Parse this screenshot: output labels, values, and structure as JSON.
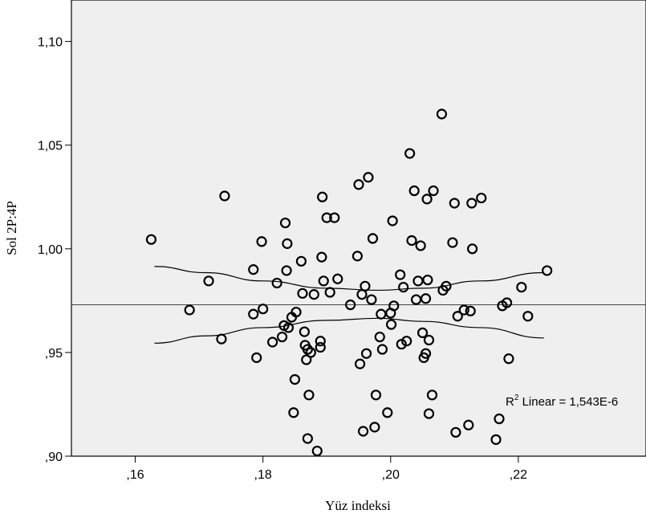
{
  "chart_data": {
    "type": "scatter",
    "xlabel": "Yüz indeksi",
    "ylabel": "Sol 2P:4P",
    "xlim": [
      0.15,
      0.24
    ],
    "ylim": [
      0.9,
      1.12
    ],
    "x_ticks": [
      0.16,
      0.18,
      0.2,
      0.22
    ],
    "x_tick_labels": [
      ",16",
      ",18",
      ",20",
      ",22"
    ],
    "y_ticks": [
      0.9,
      0.95,
      1.0,
      1.05,
      1.1
    ],
    "y_tick_labels": [
      ",90",
      ",95",
      "1,00",
      "1,05",
      "1,10"
    ],
    "grid": false,
    "background_color": "#efefef",
    "annotation": {
      "prefix": "R",
      "superscript": "2",
      "text": " Linear = 1,543E-6"
    },
    "fit_line": {
      "y": 0.973
    },
    "confidence_band": {
      "upper": [
        [
          0.163,
          0.9915
        ],
        [
          0.171,
          0.9885
        ],
        [
          0.18,
          0.9845
        ],
        [
          0.19,
          0.981
        ],
        [
          0.198,
          0.98
        ],
        [
          0.205,
          0.981
        ],
        [
          0.214,
          0.9845
        ],
        [
          0.224,
          0.9885
        ]
      ],
      "lower": [
        [
          0.163,
          0.9545
        ],
        [
          0.171,
          0.958
        ],
        [
          0.18,
          0.962
        ],
        [
          0.19,
          0.9655
        ],
        [
          0.198,
          0.9665
        ],
        [
          0.205,
          0.965
        ],
        [
          0.214,
          0.962
        ],
        [
          0.224,
          0.957
        ]
      ]
    },
    "points": [
      [
        0.1625,
        1.0045
      ],
      [
        0.1685,
        0.9705
      ],
      [
        0.1715,
        0.9845
      ],
      [
        0.1735,
        0.9565
      ],
      [
        0.174,
        1.0255
      ],
      [
        0.1785,
        0.99
      ],
      [
        0.1785,
        0.9685
      ],
      [
        0.179,
        0.9475
      ],
      [
        0.1798,
        1.0035
      ],
      [
        0.18,
        0.971
      ],
      [
        0.1815,
        0.955
      ],
      [
        0.1822,
        0.9835
      ],
      [
        0.183,
        0.9575
      ],
      [
        0.1833,
        0.963
      ],
      [
        0.1835,
        1.0125
      ],
      [
        0.1837,
        0.9895
      ],
      [
        0.1838,
        1.0025
      ],
      [
        0.184,
        0.962
      ],
      [
        0.1845,
        0.967
      ],
      [
        0.1848,
        0.921
      ],
      [
        0.185,
        0.937
      ],
      [
        0.1852,
        0.9695
      ],
      [
        0.186,
        0.994
      ],
      [
        0.1862,
        0.9785
      ],
      [
        0.1865,
        0.96
      ],
      [
        0.1866,
        0.9535
      ],
      [
        0.1868,
        0.9465
      ],
      [
        0.187,
        0.9515
      ],
      [
        0.187,
        0.9085
      ],
      [
        0.1872,
        0.9295
      ],
      [
        0.1875,
        0.95
      ],
      [
        0.188,
        0.978
      ],
      [
        0.1885,
        0.9025
      ],
      [
        0.189,
        0.9525
      ],
      [
        0.189,
        0.9555
      ],
      [
        0.1892,
        0.996
      ],
      [
        0.1893,
        1.025
      ],
      [
        0.1895,
        0.9845
      ],
      [
        0.19,
        1.015
      ],
      [
        0.1905,
        0.979
      ],
      [
        0.1912,
        1.015
      ],
      [
        0.1917,
        0.9855
      ],
      [
        0.1937,
        0.973
      ],
      [
        0.1948,
        0.9965
      ],
      [
        0.195,
        1.031
      ],
      [
        0.1952,
        0.9445
      ],
      [
        0.1955,
        0.978
      ],
      [
        0.1957,
        0.912
      ],
      [
        0.196,
        0.982
      ],
      [
        0.1962,
        0.9495
      ],
      [
        0.1965,
        1.0345
      ],
      [
        0.197,
        0.9755
      ],
      [
        0.1972,
        1.005
      ],
      [
        0.1975,
        0.914
      ],
      [
        0.1977,
        0.9295
      ],
      [
        0.1983,
        0.9575
      ],
      [
        0.1985,
        0.9685
      ],
      [
        0.1987,
        0.9515
      ],
      [
        0.1995,
        0.921
      ],
      [
        0.2,
        0.969
      ],
      [
        0.2001,
        0.9635
      ],
      [
        0.2003,
        1.0135
      ],
      [
        0.2005,
        0.9725
      ],
      [
        0.2015,
        0.9875
      ],
      [
        0.2017,
        0.954
      ],
      [
        0.202,
        0.9815
      ],
      [
        0.2025,
        0.9555
      ],
      [
        0.203,
        1.046
      ],
      [
        0.2033,
        1.004
      ],
      [
        0.2037,
        1.028
      ],
      [
        0.204,
        0.9755
      ],
      [
        0.2043,
        0.9845
      ],
      [
        0.2047,
        1.0015
      ],
      [
        0.205,
        0.9595
      ],
      [
        0.2052,
        0.9475
      ],
      [
        0.2055,
        0.9495
      ],
      [
        0.2055,
        0.976
      ],
      [
        0.2057,
        1.024
      ],
      [
        0.2058,
        0.985
      ],
      [
        0.206,
        0.956
      ],
      [
        0.206,
        0.9205
      ],
      [
        0.2065,
        0.9295
      ],
      [
        0.2067,
        1.028
      ],
      [
        0.208,
        1.065
      ],
      [
        0.2082,
        0.98
      ],
      [
        0.2087,
        0.982
      ],
      [
        0.2097,
        1.003
      ],
      [
        0.21,
        1.022
      ],
      [
        0.2102,
        0.9115
      ],
      [
        0.2105,
        0.9675
      ],
      [
        0.2115,
        0.9705
      ],
      [
        0.2122,
        0.915
      ],
      [
        0.2125,
        0.97
      ],
      [
        0.2127,
        1.022
      ],
      [
        0.2128,
        1.0
      ],
      [
        0.2142,
        1.0245
      ],
      [
        0.2165,
        0.908
      ],
      [
        0.217,
        0.918
      ],
      [
        0.2175,
        0.9725
      ],
      [
        0.2182,
        0.974
      ],
      [
        0.2185,
        0.947
      ],
      [
        0.2205,
        0.9815
      ],
      [
        0.2215,
        0.9675
      ],
      [
        0.2245,
        0.9895
      ]
    ]
  }
}
